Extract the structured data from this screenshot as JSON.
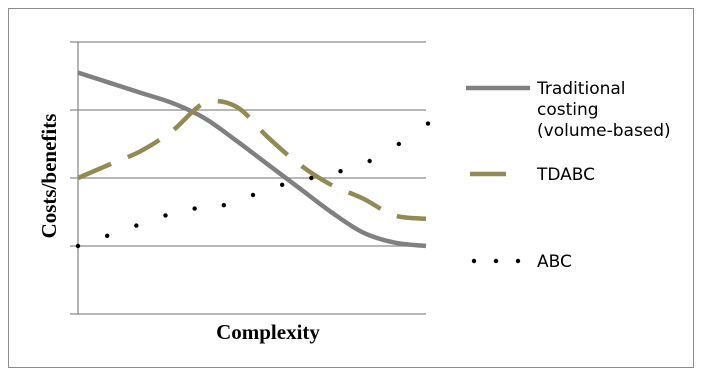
{
  "chart_data": {
    "type": "line",
    "title": "",
    "xlabel": "Complexity",
    "ylabel": "Costs/benefits",
    "xlim": [
      0,
      11
    ],
    "ylim": [
      0,
      4
    ],
    "grid": true,
    "legend_placement": "right",
    "tick_labels": false,
    "series": [
      {
        "name": "Traditional costing (volume-based)",
        "style": "solid",
        "color": "#808080",
        "x": [
          0,
          1,
          2,
          3,
          4,
          5,
          6,
          7,
          8,
          9,
          10,
          11
        ],
        "y": [
          3.55,
          3.4,
          3.25,
          3.1,
          2.88,
          2.55,
          2.2,
          1.85,
          1.5,
          1.2,
          1.05,
          1.0
        ]
      },
      {
        "name": "TDABC",
        "style": "dashed",
        "color": "#938953",
        "x": [
          0,
          1,
          2,
          3,
          4,
          5,
          6,
          7,
          8,
          9,
          10,
          11
        ],
        "y": [
          2.0,
          2.2,
          2.4,
          2.7,
          3.1,
          3.05,
          2.6,
          2.2,
          1.9,
          1.7,
          1.45,
          1.4
        ]
      },
      {
        "name": "ABC",
        "style": "dotted",
        "color": "#000000",
        "x": [
          0,
          1,
          2,
          3,
          4,
          5,
          6,
          7,
          8,
          9,
          10,
          11,
          12
        ],
        "y": [
          1.0,
          1.15,
          1.3,
          1.45,
          1.55,
          1.6,
          1.75,
          1.9,
          2.0,
          2.1,
          2.25,
          2.5,
          2.8
        ]
      }
    ]
  }
}
